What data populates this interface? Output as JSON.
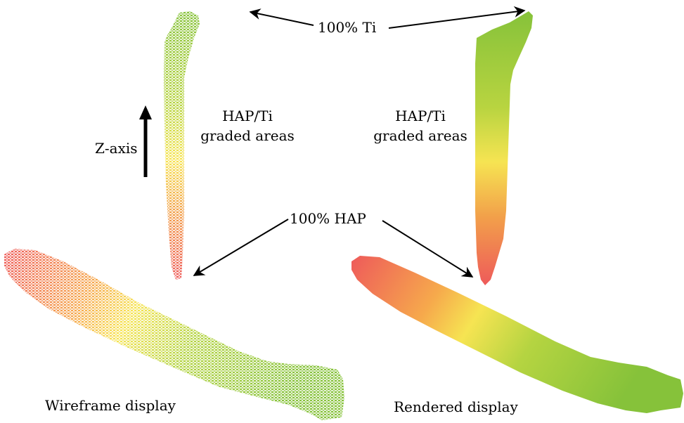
{
  "labels": {
    "ti_top": "100% Ti",
    "hap_bottom": "100% HAP",
    "graded_left_line1": "HAP/Ti",
    "graded_left_line2": "graded areas",
    "graded_right_line1": "HAP/Ti",
    "graded_right_line2": "graded areas",
    "z_axis": "Z-axis",
    "wireframe": "Wireframe display",
    "rendered": "Rendered display"
  },
  "colors": {
    "hap": "#ee5a5a",
    "mid": "#f6e452",
    "ti": "#86c23a",
    "arrow": "#000000"
  }
}
